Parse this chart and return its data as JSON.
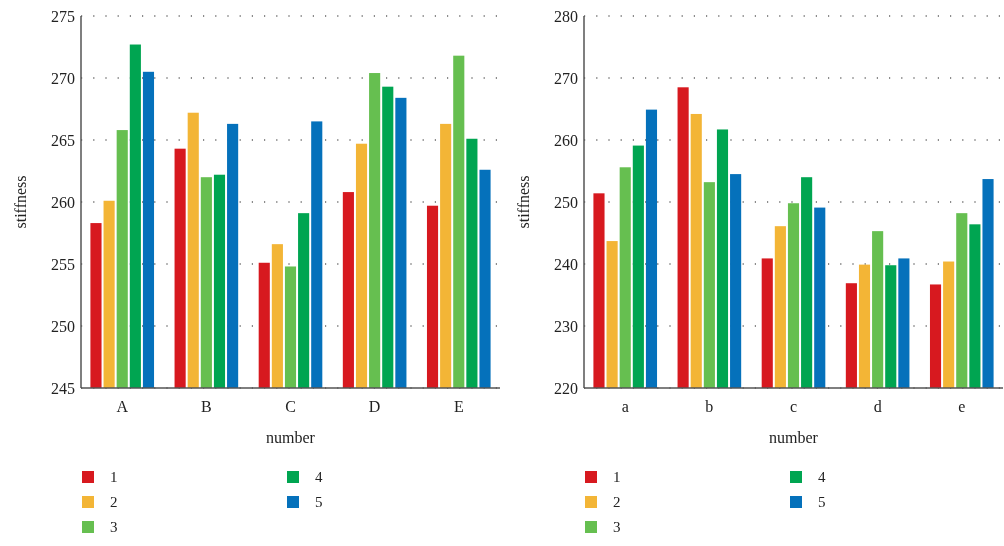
{
  "chart_data": [
    {
      "type": "bar",
      "xlabel": "number",
      "ylabel": "stiffness",
      "categories": [
        "A",
        "B",
        "C",
        "D",
        "E"
      ],
      "ylim": [
        245,
        275
      ],
      "yticks": [
        245,
        250,
        255,
        260,
        265,
        270,
        275
      ],
      "grid": "y",
      "legend": "bottom",
      "series": [
        {
          "name": "1",
          "color": "#d7191f",
          "values": [
            258.3,
            264.3,
            255.1,
            260.8,
            259.7
          ]
        },
        {
          "name": "2",
          "color": "#f3b536",
          "values": [
            260.1,
            267.2,
            256.6,
            264.7,
            266.3
          ]
        },
        {
          "name": "3",
          "color": "#66bf50",
          "values": [
            265.8,
            262.0,
            254.8,
            270.4,
            271.8
          ]
        },
        {
          "name": "4",
          "color": "#00a551",
          "values": [
            272.7,
            262.2,
            259.1,
            269.3,
            265.1
          ]
        },
        {
          "name": "5",
          "color": "#0571bb",
          "values": [
            270.5,
            266.3,
            266.5,
            268.4,
            262.6
          ]
        }
      ]
    },
    {
      "type": "bar",
      "xlabel": "number",
      "ylabel": "stiffness",
      "categories": [
        "a",
        "b",
        "c",
        "d",
        "e"
      ],
      "ylim": [
        220,
        280
      ],
      "yticks": [
        220,
        230,
        240,
        250,
        260,
        270,
        280
      ],
      "grid": "y",
      "legend": "bottom",
      "series": [
        {
          "name": "1",
          "color": "#d7191f",
          "values": [
            251.4,
            268.5,
            240.9,
            236.9,
            236.7
          ]
        },
        {
          "name": "2",
          "color": "#f3b536",
          "values": [
            243.7,
            264.2,
            246.1,
            239.9,
            240.4
          ]
        },
        {
          "name": "3",
          "color": "#66bf50",
          "values": [
            255.6,
            253.2,
            249.8,
            245.3,
            248.2
          ]
        },
        {
          "name": "4",
          "color": "#00a551",
          "values": [
            259.1,
            261.7,
            254.0,
            239.8,
            246.4
          ]
        },
        {
          "name": "5",
          "color": "#0571bb",
          "values": [
            264.9,
            254.5,
            249.1,
            240.9,
            253.7
          ]
        }
      ]
    }
  ]
}
